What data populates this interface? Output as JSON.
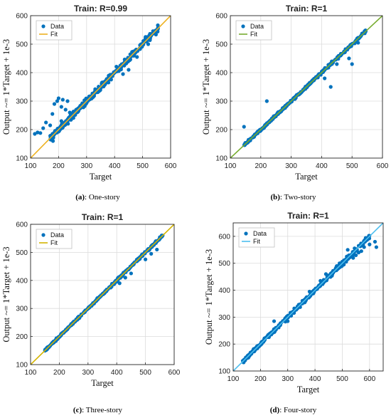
{
  "colors": {
    "data": "#0072BD",
    "grid": "#dcdcdc",
    "axis": "#262626"
  },
  "chart_data": [
    {
      "type": "scatter",
      "title": "Train: R=0.99",
      "xlabel": "Target",
      "ylabel": "Output ~= 1*Target + 1e-3",
      "xlim": [
        100,
        600
      ],
      "ylim": [
        100,
        600
      ],
      "xticks": [
        100,
        200,
        300,
        400,
        500,
        600
      ],
      "yticks": [
        100,
        200,
        300,
        400,
        500,
        600
      ],
      "grid": true,
      "legend": [
        "Data",
        "Fit"
      ],
      "legend_position": "top-left",
      "fit_color": "#EDB120",
      "fit": {
        "slope": 1,
        "intercept": 0.001
      },
      "scatter_spread": 18,
      "x_range": [
        170,
        555
      ],
      "outliers": [
        [
          115,
          185
        ],
        [
          125,
          190
        ],
        [
          135,
          188
        ],
        [
          145,
          205
        ],
        [
          155,
          225
        ],
        [
          170,
          215
        ],
        [
          178,
          255
        ],
        [
          185,
          290
        ],
        [
          195,
          300
        ],
        [
          200,
          310
        ],
        [
          210,
          280
        ],
        [
          215,
          305
        ],
        [
          225,
          270
        ],
        [
          232,
          300
        ],
        [
          240,
          260
        ],
        [
          245,
          245
        ],
        [
          210,
          230
        ],
        [
          180,
          160
        ],
        [
          430,
          395
        ],
        [
          450,
          410
        ],
        [
          480,
          455
        ],
        [
          520,
          500
        ]
      ],
      "caption_letter": "(a)",
      "caption_text": ": One-story"
    },
    {
      "type": "scatter",
      "title": "Train: R=1",
      "xlabel": "Target",
      "ylabel": "Output ~= 1*Target + 1e-3",
      "xlim": [
        100,
        600
      ],
      "ylim": [
        100,
        600
      ],
      "xticks": [
        100,
        200,
        300,
        400,
        500,
        600
      ],
      "yticks": [
        100,
        200,
        300,
        400,
        500,
        600
      ],
      "grid": true,
      "legend": [
        "Data",
        "Fit"
      ],
      "legend_position": "top-left",
      "fit_color": "#77AC30",
      "fit": {
        "slope": 1,
        "intercept": 0.001
      },
      "scatter_spread": 7,
      "x_range": [
        145,
        545
      ],
      "outliers": [
        [
          145,
          210
        ],
        [
          220,
          300
        ],
        [
          410,
          380
        ],
        [
          430,
          350
        ],
        [
          450,
          430
        ],
        [
          490,
          450
        ],
        [
          500,
          430
        ],
        [
          520,
          505
        ],
        [
          530,
          530
        ]
      ],
      "caption_letter": "(b)",
      "caption_text": ": Two-story"
    },
    {
      "type": "scatter",
      "title": "Train: R=1",
      "xlabel": "Target",
      "ylabel": "Output ~= 1*Target + 1e-3",
      "xlim": [
        100,
        600
      ],
      "ylim": [
        100,
        600
      ],
      "xticks": [
        100,
        200,
        300,
        400,
        500,
        600
      ],
      "yticks": [
        100,
        200,
        300,
        400,
        500,
        600
      ],
      "grid": true,
      "legend": [
        "Data",
        "Fit"
      ],
      "legend_position": "top-left",
      "fit_color": "#D4B400",
      "fit": {
        "slope": 1,
        "intercept": 0.001
      },
      "scatter_spread": 6,
      "x_range": [
        150,
        560
      ],
      "outliers": [
        [
          410,
          390
        ],
        [
          430,
          410
        ],
        [
          450,
          425
        ],
        [
          500,
          475
        ],
        [
          520,
          495
        ],
        [
          540,
          510
        ],
        [
          555,
          555
        ],
        [
          560,
          560
        ]
      ],
      "caption_letter": "(c)",
      "caption_text": ": Three-story"
    },
    {
      "type": "scatter",
      "title": "Train: R=1",
      "xlabel": "Target",
      "ylabel": "Output ~= 1*Target + 1e-3",
      "xlim": [
        100,
        650
      ],
      "ylim": [
        100,
        650
      ],
      "xticks": [
        100,
        200,
        300,
        400,
        500,
        600
      ],
      "yticks": [
        100,
        200,
        300,
        400,
        500,
        600
      ],
      "grid": true,
      "legend": [
        "Data",
        "Fit"
      ],
      "legend_position": "top-left",
      "fit_color": "#4DBEEE",
      "fit": {
        "slope": 1,
        "intercept": 0.001
      },
      "scatter_spread": 11,
      "x_range": [
        135,
        600
      ],
      "outliers": [
        [
          250,
          285
        ],
        [
          300,
          285
        ],
        [
          380,
          395
        ],
        [
          420,
          435
        ],
        [
          440,
          460
        ],
        [
          450,
          455
        ],
        [
          470,
          470
        ],
        [
          490,
          500
        ],
        [
          500,
          500
        ],
        [
          520,
          550
        ],
        [
          540,
          520
        ],
        [
          550,
          530
        ],
        [
          560,
          540
        ],
        [
          570,
          545
        ],
        [
          580,
          560
        ],
        [
          600,
          570
        ],
        [
          620,
          580
        ],
        [
          625,
          560
        ]
      ],
      "caption_letter": "(d)",
      "caption_text": ": Four-story"
    }
  ]
}
